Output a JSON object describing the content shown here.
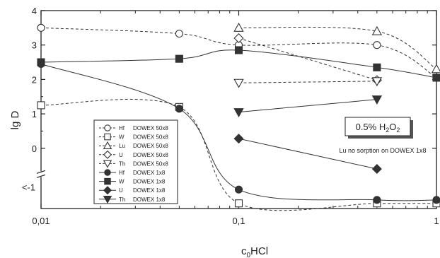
{
  "chart_data": {
    "type": "line",
    "title": "",
    "xlabel": "c",
    "xlabel_sub": "0",
    "xlabel_rest": "HCl",
    "ylabel": "lg D",
    "x_scale": "log",
    "xlim": [
      0.01,
      1
    ],
    "ylim": [
      -1.75,
      4
    ],
    "x_ticks": [
      0.01,
      0.1,
      1
    ],
    "x_tick_labels": [
      "0,01",
      "0,1",
      "1"
    ],
    "y_ticks": [
      0,
      1,
      2,
      3,
      4
    ],
    "y_tick_labels": [
      "0",
      "1",
      "2",
      "3",
      "4"
    ],
    "y_break_label": "<-1",
    "legend_position": "lower-left",
    "series": [
      {
        "name": "Hf",
        "resin": "DOWEX 50x8",
        "marker": "circle-open",
        "line": "dashed",
        "points": [
          [
            0.01,
            3.5
          ],
          [
            0.05,
            3.33
          ],
          [
            0.1,
            3.0
          ],
          [
            0.5,
            3.0
          ],
          [
            1,
            2.05
          ]
        ]
      },
      {
        "name": "W",
        "resin": "DOWEX 50x8",
        "marker": "square-open",
        "line": "dashed",
        "points": [
          [
            0.01,
            1.25
          ],
          [
            0.05,
            1.2
          ],
          [
            0.1,
            -1.6
          ],
          [
            0.5,
            -1.6
          ],
          [
            1,
            -1.6
          ]
        ]
      },
      {
        "name": "Lu",
        "resin": "DOWEX 50x8",
        "marker": "triangle-up-open",
        "line": "dashed",
        "points": [
          [
            0.1,
            3.5
          ],
          [
            0.5,
            3.4
          ],
          [
            1,
            2.3
          ]
        ]
      },
      {
        "name": "U",
        "resin": "DOWEX 50x8",
        "marker": "diamond-open",
        "line": "dashed",
        "points": [
          [
            0.1,
            3.2
          ],
          [
            0.5,
            1.98
          ]
        ]
      },
      {
        "name": "Th",
        "resin": "DOWEX 50x8",
        "marker": "triangle-down-open",
        "line": "dashed",
        "points": [
          [
            0.1,
            1.9
          ],
          [
            0.5,
            1.95
          ]
        ]
      },
      {
        "name": "Hf",
        "resin": "DOWEX 1x8",
        "marker": "circle-filled",
        "line": "solid",
        "points": [
          [
            0.01,
            2.45
          ],
          [
            0.05,
            1.15
          ],
          [
            0.1,
            -1.2
          ],
          [
            0.5,
            -1.5
          ],
          [
            1,
            -1.5
          ]
        ]
      },
      {
        "name": "W",
        "resin": "DOWEX 1x8",
        "marker": "square-filled",
        "line": "solid",
        "points": [
          [
            0.01,
            2.5
          ],
          [
            0.05,
            2.6
          ],
          [
            0.1,
            2.85
          ],
          [
            0.5,
            2.35
          ],
          [
            1,
            2.05
          ]
        ]
      },
      {
        "name": "U",
        "resin": "DOWEX 1x8",
        "marker": "diamond-filled",
        "line": "solid",
        "points": [
          [
            0.1,
            0.28
          ],
          [
            0.5,
            -0.6
          ]
        ]
      },
      {
        "name": "Th",
        "resin": "DOWEX 1x8",
        "marker": "triangle-down-filled",
        "line": "solid",
        "points": [
          [
            0.1,
            1.05
          ],
          [
            0.5,
            1.42
          ]
        ]
      }
    ],
    "annotation_box": {
      "text": "0.5% H",
      "sub1": "2",
      "mid": "O",
      "sub2": "2"
    },
    "annotation_note": "Lu no sorption on DOWEX 1x8"
  }
}
